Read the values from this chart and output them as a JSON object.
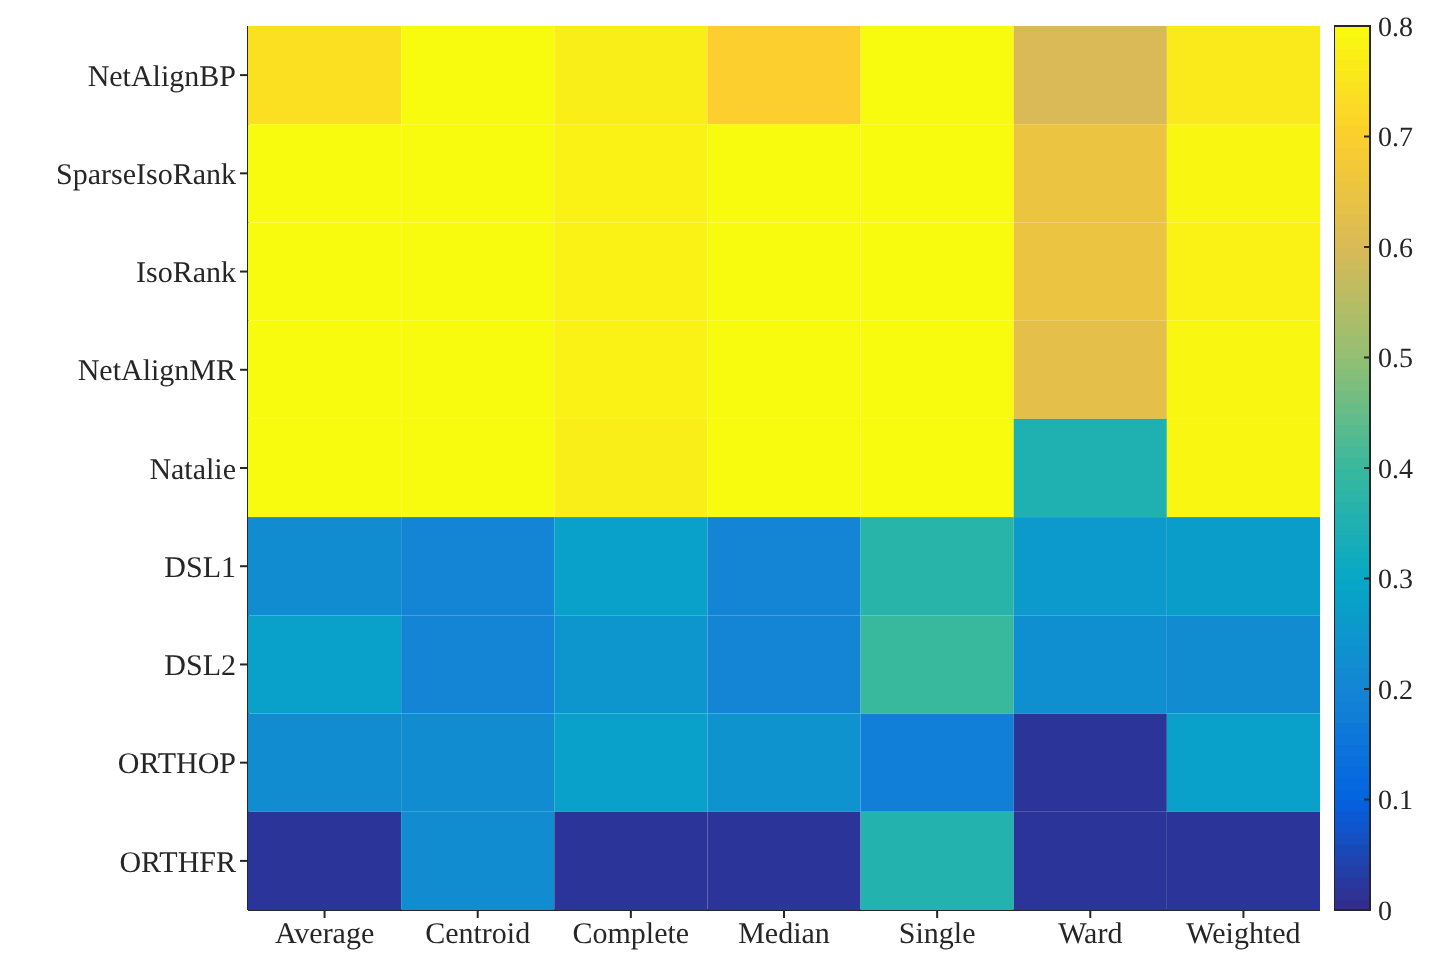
{
  "chart_data": {
    "type": "heatmap",
    "categories": [
      "Average",
      "Centroid",
      "Complete",
      "Median",
      "Single",
      "Ward",
      "Weighted"
    ],
    "y_categories": [
      "NetAlignBP",
      "SparseIsoRank",
      "IsoRank",
      "NetAlignMR",
      "Natalie",
      "DSL1",
      "DSL2",
      "ORTHOP",
      "ORTHFR"
    ],
    "cells": [
      [
        0.74,
        0.8,
        0.77,
        0.7,
        0.8,
        0.6,
        0.76
      ],
      [
        0.8,
        0.8,
        0.78,
        0.8,
        0.8,
        0.65,
        0.79
      ],
      [
        0.8,
        0.8,
        0.78,
        0.8,
        0.8,
        0.65,
        0.78
      ],
      [
        0.8,
        0.8,
        0.78,
        0.8,
        0.8,
        0.63,
        0.79
      ],
      [
        0.8,
        0.8,
        0.77,
        0.8,
        0.8,
        0.35,
        0.79
      ],
      [
        0.22,
        0.2,
        0.28,
        0.2,
        0.37,
        0.26,
        0.27
      ],
      [
        0.28,
        0.2,
        0.25,
        0.2,
        0.4,
        0.23,
        0.22
      ],
      [
        0.22,
        0.22,
        0.28,
        0.24,
        0.18,
        0.02,
        0.28
      ],
      [
        0.02,
        0.22,
        0.02,
        0.02,
        0.36,
        0.02,
        0.02
      ]
    ],
    "clim": [
      0,
      0.8
    ],
    "cticks": [
      0,
      0.1,
      0.2,
      0.3,
      0.4,
      0.5,
      0.6,
      0.7,
      0.8
    ]
  }
}
